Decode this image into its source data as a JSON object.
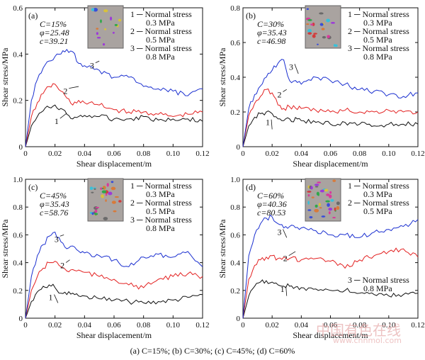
{
  "colors": {
    "series1": "#111111",
    "series2": "#e32020",
    "series3": "#1a2fd0",
    "axis": "#111111",
    "watermark": "#e8a8a8"
  },
  "caption": "(a) C=15%; (b) C=30%; (c) C=45%; (d) C=60%",
  "watermark": {
    "main": "中国有色在线",
    "url": "www.cnnmol.com"
  },
  "chart_data": [
    {
      "type": "line",
      "panel_label": "(a)",
      "params": [
        "C=15%",
        "φ=25.48",
        "c=39.21"
      ],
      "legend": [
        "1 ─ Normal stress",
        "0.3 MPa",
        "2 ─ Normal stress",
        "0.5 MPa",
        "3 ─ Normal stress",
        "0.8 MPa"
      ],
      "legend_placement": "top-right",
      "xlabel": "Shear displacement/m",
      "ylabel": "Shear stress/MPa",
      "xlim": [
        0,
        0.12
      ],
      "ylim": [
        0,
        0.6
      ],
      "xticks": [
        "0",
        "0.02",
        "0.04",
        "0.06",
        "0.08",
        "0.10",
        "0.12"
      ],
      "yticks": [
        "0",
        "0.2",
        "0.4",
        "0.6"
      ],
      "series": [
        {
          "name": "1",
          "x": [
            0,
            0.004,
            0.008,
            0.012,
            0.016,
            0.02,
            0.024,
            0.028,
            0.032,
            0.036,
            0.04,
            0.05,
            0.06,
            0.07,
            0.08,
            0.09,
            0.1,
            0.11,
            0.12
          ],
          "y": [
            0,
            0.09,
            0.13,
            0.155,
            0.17,
            0.18,
            0.165,
            0.14,
            0.12,
            0.13,
            0.135,
            0.13,
            0.12,
            0.12,
            0.13,
            0.115,
            0.12,
            0.12,
            0.11
          ]
        },
        {
          "name": "2",
          "x": [
            0,
            0.004,
            0.008,
            0.012,
            0.016,
            0.02,
            0.024,
            0.028,
            0.032,
            0.036,
            0.04,
            0.05,
            0.06,
            0.07,
            0.08,
            0.09,
            0.1,
            0.11,
            0.12
          ],
          "y": [
            0,
            0.13,
            0.19,
            0.23,
            0.26,
            0.27,
            0.24,
            0.21,
            0.18,
            0.2,
            0.19,
            0.18,
            0.16,
            0.15,
            0.15,
            0.14,
            0.13,
            0.14,
            0.15
          ]
        },
        {
          "name": "3",
          "x": [
            0,
            0.004,
            0.008,
            0.012,
            0.016,
            0.02,
            0.024,
            0.028,
            0.032,
            0.036,
            0.04,
            0.05,
            0.06,
            0.07,
            0.08,
            0.09,
            0.1,
            0.11,
            0.12
          ],
          "y": [
            0,
            0.2,
            0.29,
            0.34,
            0.37,
            0.39,
            0.4,
            0.42,
            0.41,
            0.36,
            0.35,
            0.33,
            0.3,
            0.3,
            0.26,
            0.25,
            0.24,
            0.22,
            0.25
          ]
        }
      ],
      "curve_labels": [
        "1",
        "2",
        "3"
      ]
    },
    {
      "type": "line",
      "panel_label": "(b)",
      "params": [
        "C=30%",
        "φ=35.43",
        "c=46.98"
      ],
      "legend": [
        "1 ─ Normal stress",
        "0.3 MPa",
        "2 ─ Normal stress",
        "0.5 MPa",
        "3 ─ Normal stress",
        "0.8 MPa"
      ],
      "legend_placement": "top-right",
      "xlabel": "Shear displacement/m",
      "ylabel": "Shear stress/MPa",
      "xlim": [
        0,
        0.12
      ],
      "ylim": [
        0,
        0.8
      ],
      "xticks": [
        "0",
        "0.02",
        "0.04",
        "0.06",
        "0.08",
        "0.10",
        "0.12"
      ],
      "yticks": [
        "0",
        "0.2",
        "0.4",
        "0.6",
        "0.8"
      ],
      "series": [
        {
          "name": "1",
          "x": [
            0,
            0.004,
            0.008,
            0.012,
            0.016,
            0.02,
            0.024,
            0.028,
            0.032,
            0.04,
            0.05,
            0.06,
            0.07,
            0.08,
            0.09,
            0.1,
            0.11,
            0.12
          ],
          "y": [
            0,
            0.12,
            0.17,
            0.19,
            0.2,
            0.19,
            0.16,
            0.15,
            0.16,
            0.15,
            0.14,
            0.13,
            0.14,
            0.13,
            0.12,
            0.13,
            0.13,
            0.13
          ]
        },
        {
          "name": "2",
          "x": [
            0,
            0.004,
            0.008,
            0.012,
            0.016,
            0.02,
            0.024,
            0.028,
            0.032,
            0.04,
            0.05,
            0.06,
            0.07,
            0.08,
            0.09,
            0.1,
            0.11,
            0.12
          ],
          "y": [
            0,
            0.18,
            0.25,
            0.29,
            0.33,
            0.31,
            0.24,
            0.22,
            0.23,
            0.22,
            0.21,
            0.2,
            0.21,
            0.2,
            0.2,
            0.21,
            0.2,
            0.2
          ]
        },
        {
          "name": "3",
          "x": [
            0,
            0.004,
            0.008,
            0.012,
            0.016,
            0.02,
            0.024,
            0.028,
            0.032,
            0.04,
            0.05,
            0.06,
            0.07,
            0.08,
            0.09,
            0.1,
            0.11,
            0.12
          ],
          "y": [
            0,
            0.22,
            0.3,
            0.35,
            0.4,
            0.44,
            0.48,
            0.5,
            0.38,
            0.36,
            0.4,
            0.38,
            0.36,
            0.33,
            0.32,
            0.3,
            0.29,
            0.31
          ]
        }
      ],
      "curve_labels": [
        "1",
        "2",
        "3"
      ]
    },
    {
      "type": "line",
      "panel_label": "(c)",
      "params": [
        "C=45%",
        "φ=35.43",
        "c=58.76"
      ],
      "legend": [
        "1 ─ Normal stress",
        "0.3 MPa",
        "2 ─ Normal stress",
        "0.5 MPa",
        "3 ─ Normal stress",
        "0.8 MPa"
      ],
      "legend_placement": "top-right",
      "xlabel": "Shear displacement/m",
      "ylabel": "Shear stress/MPa",
      "xlim": [
        0,
        0.12
      ],
      "ylim": [
        0,
        1.0
      ],
      "xticks": [
        "0",
        "0.02",
        "0.04",
        "0.06",
        "0.08",
        "0.10",
        "0.12"
      ],
      "yticks": [
        "0",
        "0.2",
        "0.4",
        "0.6",
        "0.8",
        "1.0"
      ],
      "series": [
        {
          "name": "1",
          "x": [
            0,
            0.004,
            0.008,
            0.012,
            0.016,
            0.02,
            0.024,
            0.028,
            0.032,
            0.04,
            0.05,
            0.06,
            0.07,
            0.08,
            0.09,
            0.1,
            0.11,
            0.12
          ],
          "y": [
            0,
            0.12,
            0.19,
            0.23,
            0.24,
            0.22,
            0.18,
            0.17,
            0.18,
            0.16,
            0.14,
            0.13,
            0.12,
            0.11,
            0.12,
            0.13,
            0.15,
            0.17
          ]
        },
        {
          "name": "2",
          "x": [
            0,
            0.004,
            0.008,
            0.012,
            0.016,
            0.02,
            0.024,
            0.028,
            0.032,
            0.04,
            0.05,
            0.06,
            0.07,
            0.08,
            0.09,
            0.1,
            0.11,
            0.12
          ],
          "y": [
            0,
            0.2,
            0.3,
            0.36,
            0.4,
            0.41,
            0.37,
            0.34,
            0.35,
            0.33,
            0.3,
            0.28,
            0.24,
            0.22,
            0.28,
            0.3,
            0.32,
            0.3
          ]
        },
        {
          "name": "3",
          "x": [
            0,
            0.004,
            0.008,
            0.012,
            0.016,
            0.02,
            0.024,
            0.028,
            0.032,
            0.04,
            0.05,
            0.06,
            0.07,
            0.08,
            0.09,
            0.1,
            0.11,
            0.12
          ],
          "y": [
            0,
            0.3,
            0.45,
            0.53,
            0.59,
            0.62,
            0.55,
            0.5,
            0.52,
            0.47,
            0.45,
            0.42,
            0.37,
            0.44,
            0.46,
            0.44,
            0.48,
            0.37
          ]
        }
      ],
      "curve_labels": [
        "1",
        "2",
        "3"
      ]
    },
    {
      "type": "line",
      "panel_label": "(d)",
      "params": [
        "C=60%",
        "φ=40.36",
        "c=80.53"
      ],
      "legend": [
        "1 ─ Normal stress",
        "0.3 MPa",
        "2 ─ Normal stress",
        "0.5 MPa",
        "3 ─ Normal stress",
        "0.8 MPa"
      ],
      "legend_placement": "top-right",
      "xlabel": "Shear displacement/m",
      "ylabel": "Shear stress/MPa",
      "xlim": [
        0,
        0.12
      ],
      "ylim": [
        0,
        1.0
      ],
      "xticks": [
        "0",
        "0.02",
        "0.04",
        "0.06",
        "0.08",
        "0.10",
        "0.12"
      ],
      "yticks": [
        "0",
        "0.2",
        "0.4",
        "0.6",
        "0.8",
        "1.0"
      ],
      "series": [
        {
          "name": "1",
          "x": [
            0,
            0.004,
            0.008,
            0.012,
            0.016,
            0.02,
            0.024,
            0.028,
            0.032,
            0.04,
            0.05,
            0.06,
            0.07,
            0.08,
            0.09,
            0.1,
            0.11,
            0.12
          ],
          "y": [
            0,
            0.16,
            0.23,
            0.26,
            0.27,
            0.26,
            0.24,
            0.23,
            0.23,
            0.22,
            0.21,
            0.2,
            0.2,
            0.18,
            0.17,
            0.16,
            0.17,
            0.18
          ]
        },
        {
          "name": "2",
          "x": [
            0,
            0.004,
            0.008,
            0.012,
            0.016,
            0.02,
            0.024,
            0.028,
            0.032,
            0.04,
            0.05,
            0.06,
            0.07,
            0.08,
            0.09,
            0.1,
            0.11,
            0.12
          ],
          "y": [
            0,
            0.28,
            0.38,
            0.42,
            0.44,
            0.45,
            0.43,
            0.44,
            0.43,
            0.42,
            0.43,
            0.41,
            0.36,
            0.42,
            0.45,
            0.48,
            0.5,
            0.44
          ]
        },
        {
          "name": "3",
          "x": [
            0,
            0.004,
            0.008,
            0.012,
            0.016,
            0.02,
            0.024,
            0.028,
            0.032,
            0.04,
            0.05,
            0.06,
            0.07,
            0.08,
            0.09,
            0.1,
            0.11,
            0.12
          ],
          "y": [
            0,
            0.45,
            0.6,
            0.68,
            0.72,
            0.73,
            0.68,
            0.65,
            0.66,
            0.65,
            0.63,
            0.6,
            0.6,
            0.58,
            0.62,
            0.64,
            0.66,
            0.71
          ]
        }
      ],
      "curve_labels": [
        "1",
        "2",
        "3"
      ]
    }
  ]
}
